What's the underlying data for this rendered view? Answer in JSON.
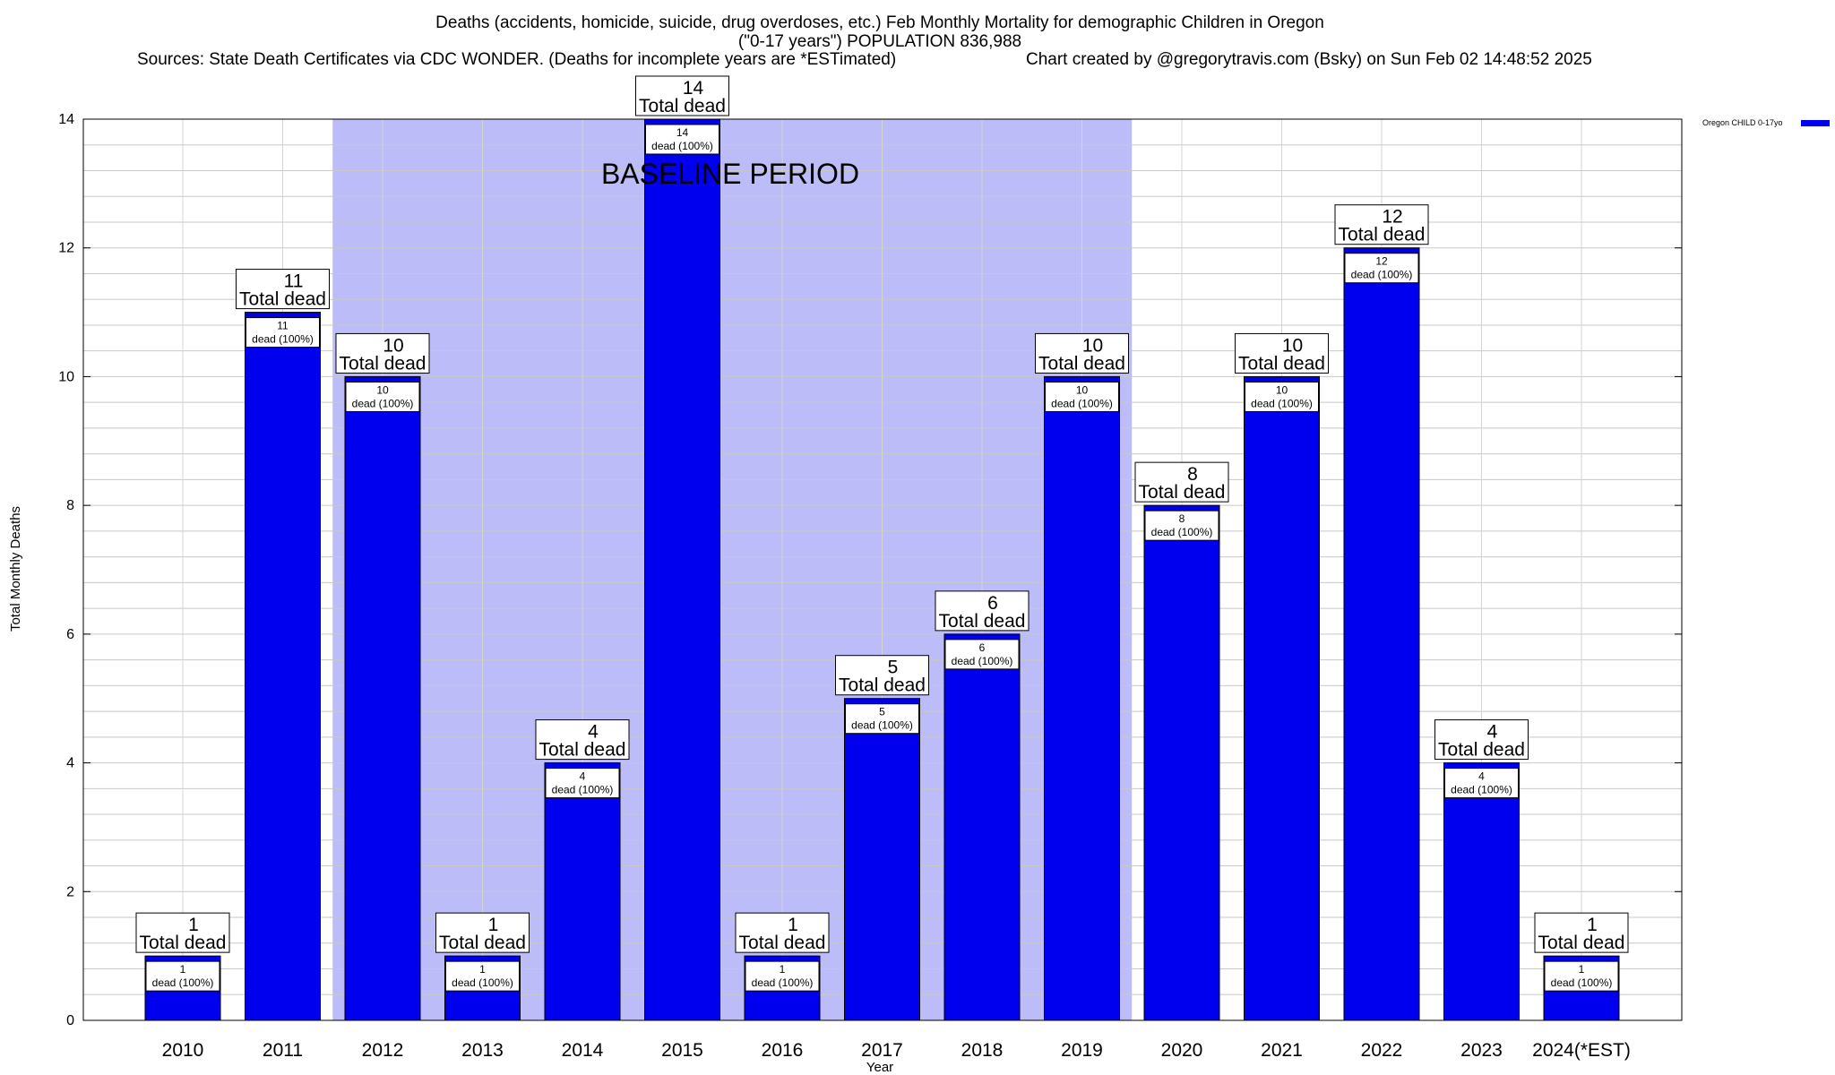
{
  "chart_data": {
    "type": "bar",
    "title": "Deaths (accidents, homicide, suicide, drug overdoses, etc.) Feb Monthly Mortality for demographic Children in Oregon",
    "subtitle": "(\"0-17 years\") POPULATION 836,988",
    "sources": "Sources: State Death Certificates via CDC WONDER. (Deaths for incomplete years are *ESTimated)",
    "credit": "Chart created by @gregorytravis.com (Bsky) on Sun Feb 02 14:48:52 2025",
    "xlabel": "Year",
    "ylabel": "Total Monthly Deaths",
    "ylim": [
      0,
      14
    ],
    "yticks": [
      0,
      2,
      4,
      6,
      8,
      10,
      12,
      14
    ],
    "grid": true,
    "categories": [
      "2010",
      "2011",
      "2012",
      "2013",
      "2014",
      "2015",
      "2016",
      "2017",
      "2018",
      "2019",
      "2020",
      "2021",
      "2022",
      "2023",
      "2024(*EST)"
    ],
    "series": [
      {
        "name": "Oregon CHILD 0-17yo",
        "color": "#0000ee",
        "values": [
          1,
          11,
          10,
          1,
          4,
          14,
          1,
          5,
          6,
          10,
          8,
          10,
          12,
          4,
          1
        ]
      }
    ],
    "total_label_suffix": "Total dead",
    "inner_label_suffix": "dead (100%)",
    "legend_position": "top-right",
    "baseline": {
      "label": "BASELINE PERIOD",
      "from": "2012",
      "to": "2019",
      "color": "#bcbcf8"
    }
  }
}
